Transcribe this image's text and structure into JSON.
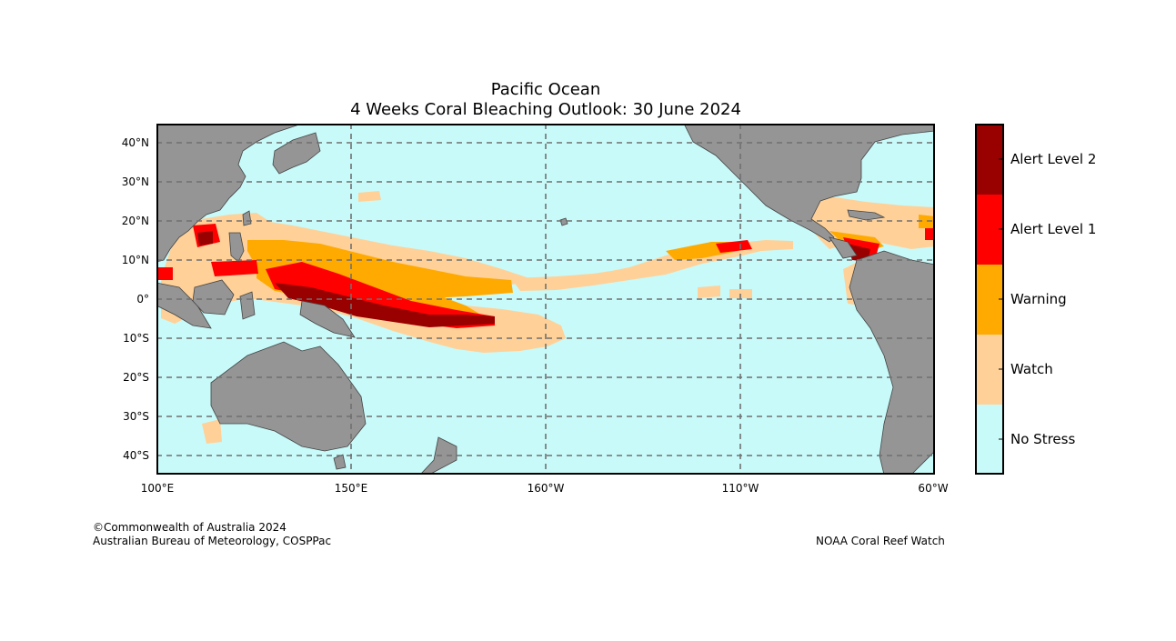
{
  "title": {
    "region": "Pacific Ocean",
    "product": "4 Weeks Coral Bleaching Outlook: 30 June 2024"
  },
  "axes": {
    "lat_labels": [
      "40°N",
      "30°N",
      "20°N",
      "10°N",
      "0°",
      "10°S",
      "20°S",
      "30°S",
      "40°S"
    ],
    "lon_labels": [
      "100°E",
      "150°E",
      "160°W",
      "110°W",
      "60°W"
    ]
  },
  "legend": {
    "levels": [
      {
        "label": "Alert Level 2",
        "color": "#990000"
      },
      {
        "label": "Alert Level 1",
        "color": "#ff0000"
      },
      {
        "label": "Warning",
        "color": "#ffaa00"
      },
      {
        "label": "Watch",
        "color": "#ffd198"
      },
      {
        "label": "No Stress",
        "color": "#c8fafa"
      }
    ]
  },
  "colors": {
    "ocean": "#c8fafa",
    "land": "#959595",
    "coastline": "#444444",
    "gridline": "#707070"
  },
  "credits": {
    "copyright": "©Commonwealth of Australia 2024",
    "agency": "Australian Bureau of Meteorology, COSPPac",
    "source": "NOAA Coral Reef Watch"
  }
}
